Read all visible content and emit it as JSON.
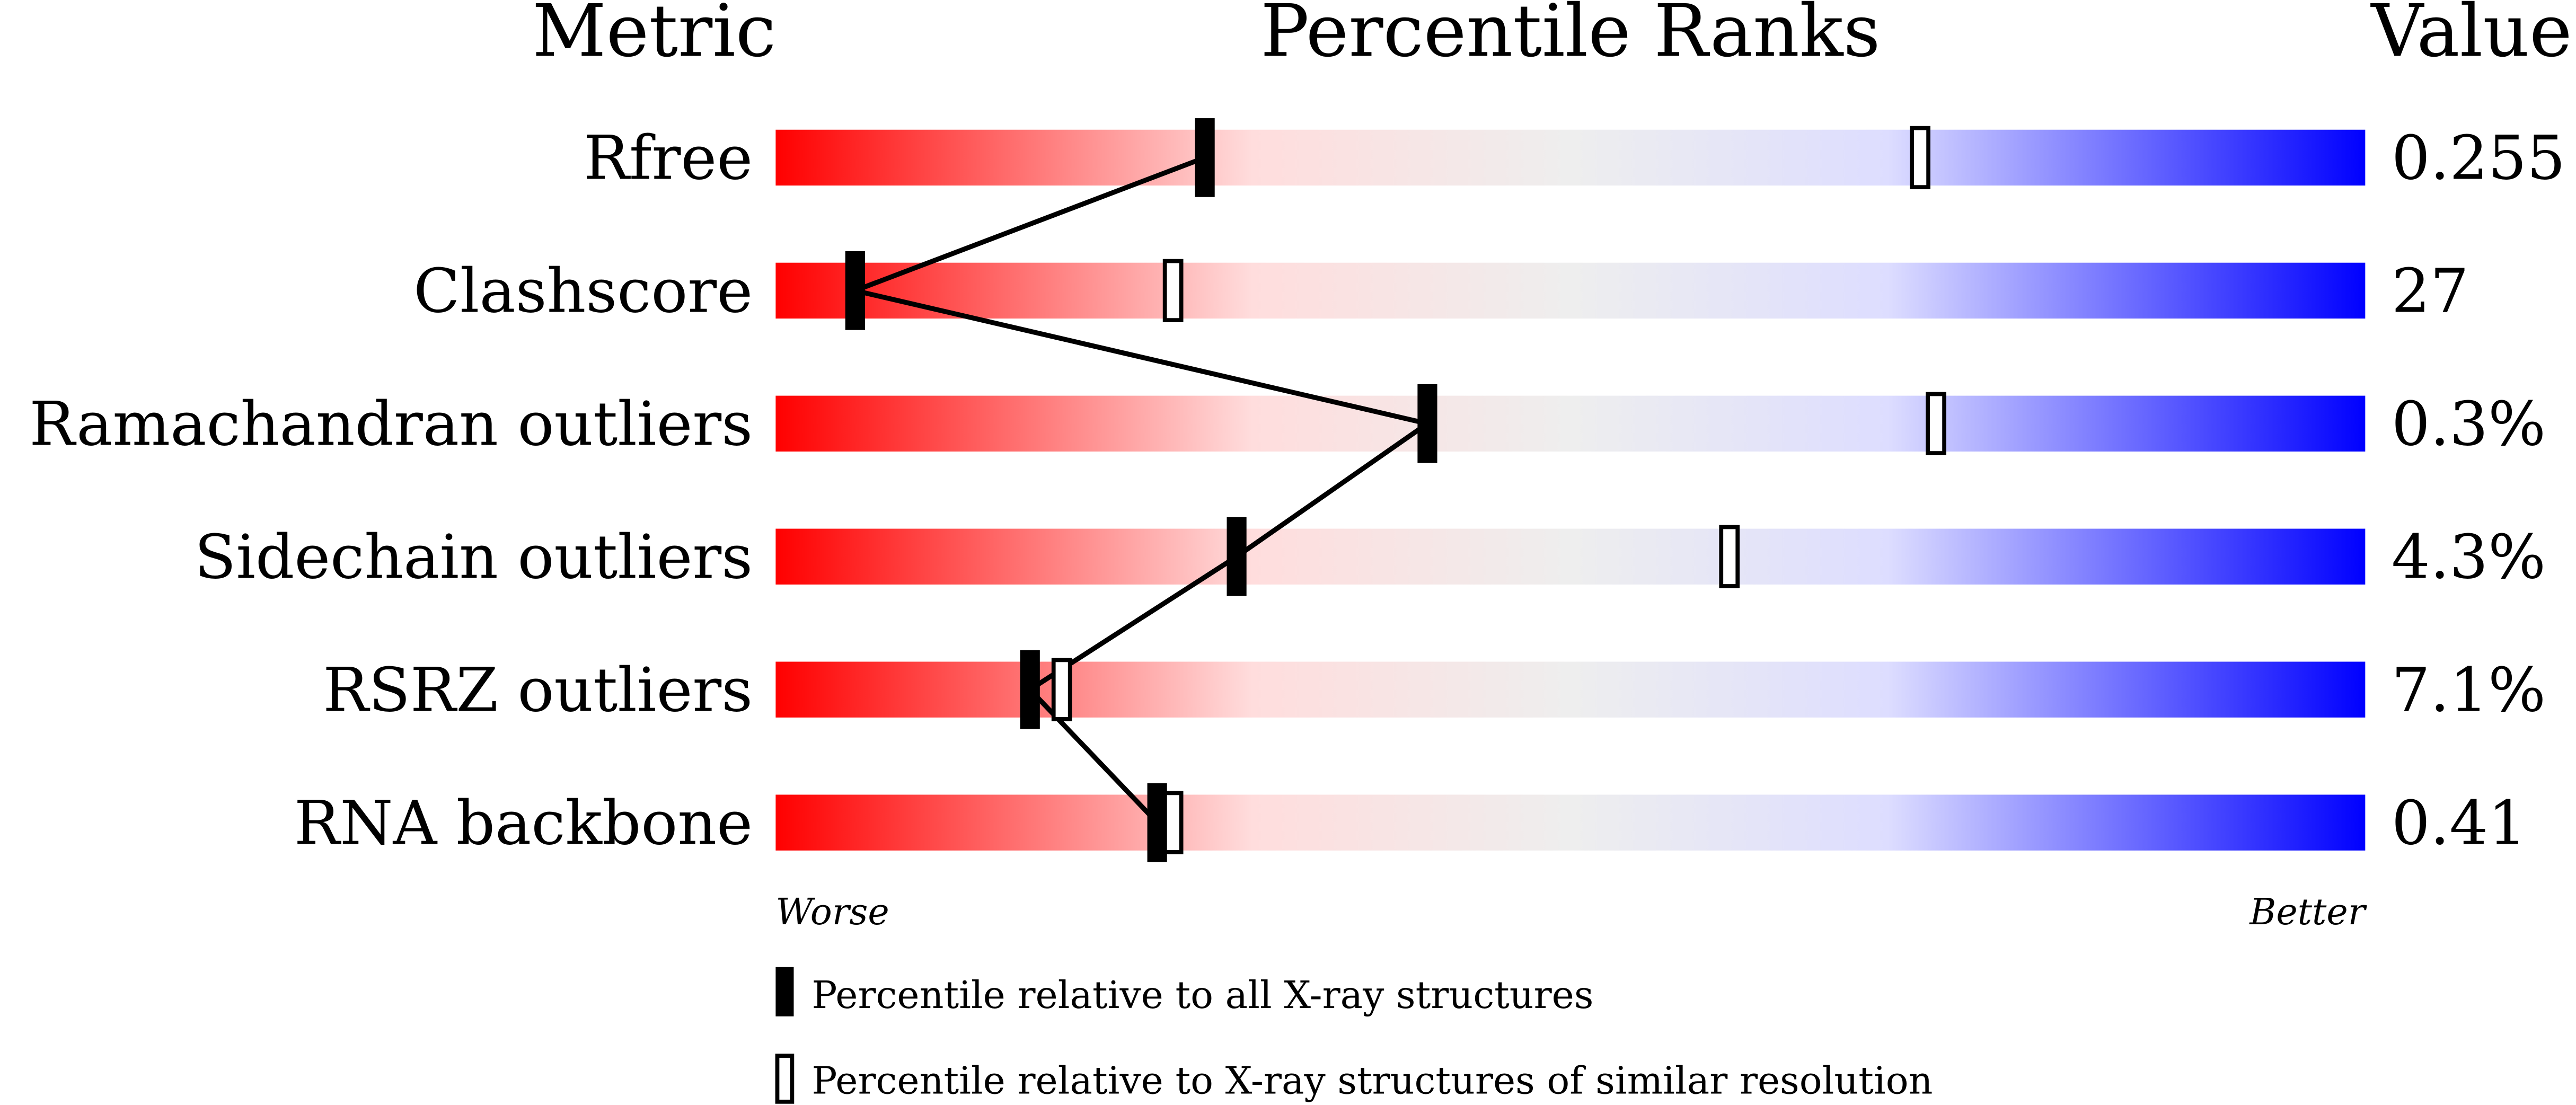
{
  "chart_data": {
    "type": "bar",
    "headers": {
      "metric": "Metric",
      "ranks": "Percentile Ranks",
      "value": "Value"
    },
    "xlim": [
      0,
      100
    ],
    "axis_labels": {
      "worse": "Worse",
      "better": "Better"
    },
    "colors": {
      "worse": "#ff0000",
      "mid": "#eeeeee",
      "better": "#0000ff",
      "marker": "#000000"
    },
    "metrics": [
      {
        "name": "Rfree",
        "value": "0.255",
        "percentile_all": 27,
        "percentile_similar": 72
      },
      {
        "name": "Clashscore",
        "value": "27",
        "percentile_all": 5,
        "percentile_similar": 25
      },
      {
        "name": "Ramachandran outliers",
        "value": "0.3%",
        "percentile_all": 41,
        "percentile_similar": 73
      },
      {
        "name": "Sidechain outliers",
        "value": "4.3%",
        "percentile_all": 29,
        "percentile_similar": 60
      },
      {
        "name": "RSRZ outliers",
        "value": "7.1%",
        "percentile_all": 16,
        "percentile_similar": 18
      },
      {
        "name": "RNA backbone",
        "value": "0.41",
        "percentile_all": 24,
        "percentile_similar": 25
      }
    ],
    "legend": [
      {
        "marker": "filled",
        "label": "Percentile relative to all X-ray structures"
      },
      {
        "marker": "open",
        "label": "Percentile relative to X-ray structures of similar resolution"
      }
    ]
  }
}
